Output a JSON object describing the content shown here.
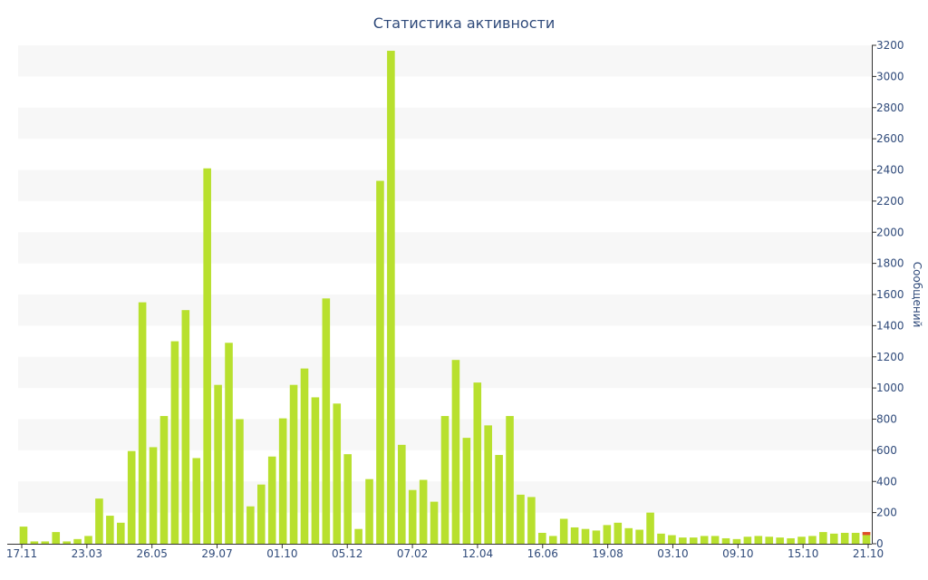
{
  "colors": {
    "bar": "#b8e02e",
    "highlight_bar": "#e04a2a",
    "band": "#f7f7f7",
    "text": "#2f4a7a",
    "axis": "#333333"
  },
  "chart_data": {
    "type": "bar",
    "title": "Статистика активности",
    "xlabel": "",
    "ylabel": "Сообщений",
    "ylim": [
      0,
      3200
    ],
    "yticks": [
      0,
      200,
      400,
      600,
      800,
      1000,
      1200,
      1400,
      1600,
      1800,
      2000,
      2200,
      2400,
      2600,
      2800,
      3000,
      3200
    ],
    "y_axis_side": "right",
    "grid": "alternating horizontal bands",
    "x_tick_labels": [
      "17.11",
      "23.03",
      "26.05",
      "29.07",
      "01.10",
      "05.12",
      "07.02",
      "12.04",
      "16.06",
      "19.08",
      "03.10",
      "09.10",
      "15.10",
      "21.10"
    ],
    "values": [
      110,
      15,
      15,
      75,
      15,
      30,
      50,
      290,
      180,
      135,
      595,
      1550,
      620,
      820,
      1300,
      1500,
      550,
      2410,
      1020,
      1290,
      800,
      240,
      380,
      560,
      805,
      1020,
      1125,
      940,
      1575,
      900,
      575,
      95,
      415,
      2330,
      3165,
      635,
      345,
      410,
      270,
      820,
      1180,
      680,
      1035,
      760,
      570,
      820,
      315,
      300,
      70,
      50,
      160,
      105,
      95,
      85,
      120,
      135,
      100,
      90,
      200,
      65,
      55,
      40,
      40,
      50,
      50,
      35,
      30,
      45,
      50,
      45,
      40,
      35,
      45,
      50,
      75,
      65,
      70,
      70,
      75
    ],
    "highlight_last": 25
  }
}
